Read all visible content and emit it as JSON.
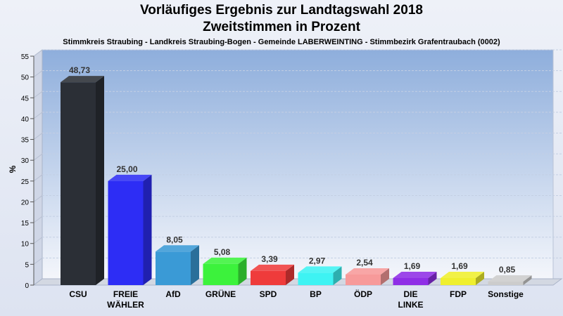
{
  "chart_data": {
    "type": "bar",
    "title": "Vorläufiges Ergebnis zur Landtagswahl 2018",
    "subtitle": "Zweitstimmen in Prozent",
    "caption": "Stimmkreis Straubing - Landkreis Straubing-Bogen - Gemeinde LABERWEINTING - Stimmbezirk Grafentraubach (0002)",
    "ylabel": "%",
    "ylim": [
      0,
      55
    ],
    "yticks": [
      0,
      5,
      10,
      15,
      20,
      25,
      30,
      35,
      40,
      45,
      50,
      55
    ],
    "grid": true,
    "categories": [
      [
        "CSU"
      ],
      [
        "FREIE",
        "WÄHLER"
      ],
      [
        "AfD"
      ],
      [
        "GRÜNE"
      ],
      [
        "SPD"
      ],
      [
        "BP"
      ],
      [
        "ÖDP"
      ],
      [
        "DIE",
        "LINKE"
      ],
      [
        "FDP"
      ],
      [
        "Sonstige"
      ]
    ],
    "values": [
      48.73,
      25.0,
      8.05,
      5.08,
      3.39,
      2.97,
      2.54,
      1.69,
      1.69,
      0.85
    ],
    "value_labels": [
      "48,73",
      "25,00",
      "8,05",
      "5,08",
      "3,39",
      "2,97",
      "2,54",
      "1,69",
      "1,69",
      "0,85"
    ],
    "colors": [
      "#2b2f36",
      "#2d2df5",
      "#3a9ad6",
      "#3cf23c",
      "#ef3b3b",
      "#3ef3f3",
      "#f79a9a",
      "#8f2ee6",
      "#efef2e",
      "#cccccc"
    ]
  }
}
